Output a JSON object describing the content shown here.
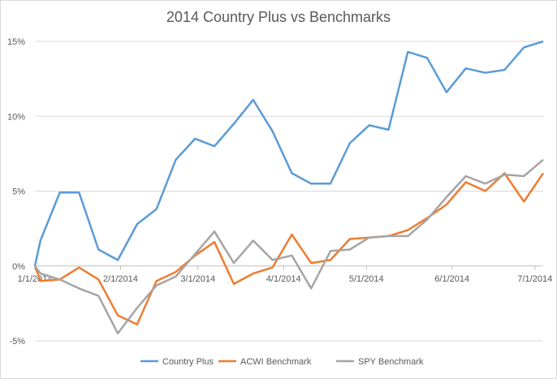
{
  "chart_data": {
    "type": "line",
    "title": "2014 Country Plus vs Benchmarks",
    "xlabel": "",
    "ylabel": "",
    "x_tick_labels": [
      "1/1/2014",
      "2/1/2014",
      "3/1/2014",
      "4/1/2014",
      "5/1/2014",
      "6/1/2014",
      "7/1/2014"
    ],
    "y_tick_labels": [
      "-5%",
      "0%",
      "5%",
      "10%",
      "15%"
    ],
    "y_ticks": [
      -5,
      0,
      5,
      10,
      15
    ],
    "ylim": [
      -5,
      15
    ],
    "x": [
      "2014-01-01",
      "2014-01-03",
      "2014-01-10",
      "2014-01-17",
      "2014-01-24",
      "2014-01-31",
      "2014-02-07",
      "2014-02-14",
      "2014-02-21",
      "2014-02-28",
      "2014-03-07",
      "2014-03-14",
      "2014-03-21",
      "2014-03-28",
      "2014-04-04",
      "2014-04-11",
      "2014-04-18",
      "2014-04-25",
      "2014-05-02",
      "2014-05-09",
      "2014-05-16",
      "2014-05-23",
      "2014-05-30",
      "2014-06-06",
      "2014-06-13",
      "2014-06-20",
      "2014-06-27",
      "2014-07-04"
    ],
    "xlim": [
      "2014-01-01",
      "2014-07-04"
    ],
    "legend_position": "bottom",
    "grid": true,
    "series": [
      {
        "name": "Country Plus",
        "color": "#5b9bd5",
        "values": [
          0,
          1.7,
          4.9,
          4.9,
          1.1,
          0.4,
          2.8,
          3.8,
          7.1,
          8.5,
          8.0,
          9.5,
          11.1,
          9.0,
          6.2,
          5.5,
          5.5,
          8.2,
          9.4,
          9.1,
          14.3,
          13.9,
          11.6,
          13.2,
          12.9,
          13.1,
          14.6,
          15.0
        ]
      },
      {
        "name": "ACWI Benchmark",
        "color": "#ed7d31",
        "values": [
          0,
          -1.0,
          -0.9,
          -0.1,
          -0.9,
          -3.3,
          -3.9,
          -1.0,
          -0.4,
          0.7,
          1.6,
          -1.2,
          -0.5,
          -0.1,
          2.1,
          0.2,
          0.4,
          1.8,
          1.9,
          2.0,
          2.4,
          3.2,
          4.1,
          5.6,
          5.0,
          6.2,
          4.3,
          6.2
        ]
      },
      {
        "name": "SPY Benchmark",
        "color": "#a5a5a5",
        "values": [
          0,
          -0.5,
          -0.9,
          -1.5,
          -2.0,
          -4.5,
          -2.8,
          -1.3,
          -0.7,
          0.8,
          2.3,
          0.2,
          1.7,
          0.4,
          0.7,
          -1.5,
          1.0,
          1.1,
          1.9,
          2.0,
          2.0,
          3.1,
          4.6,
          6.0,
          5.5,
          6.1,
          6.0,
          7.1
        ]
      }
    ]
  }
}
